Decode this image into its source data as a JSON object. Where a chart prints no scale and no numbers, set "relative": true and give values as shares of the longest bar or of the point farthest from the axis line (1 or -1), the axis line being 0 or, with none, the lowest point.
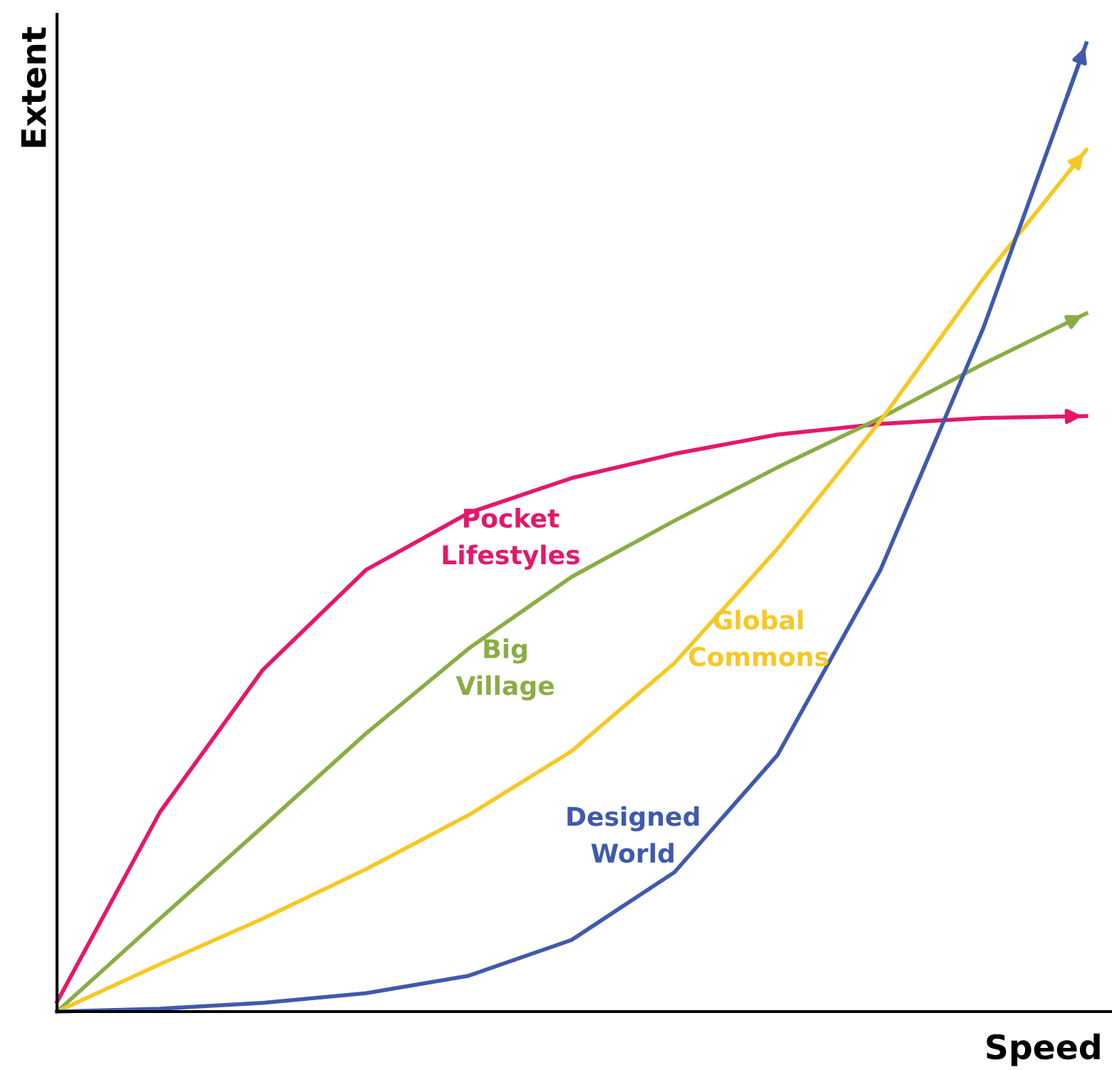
{
  "chart_data": {
    "type": "line",
    "relative": true,
    "xlabel": "Speed",
    "ylabel": "Extent",
    "line_style": "solid",
    "marker": "none",
    "legend": false,
    "categories": [
      null,
      null,
      null,
      null,
      null,
      null,
      null,
      null,
      null,
      null,
      null
    ],
    "series": [
      {
        "name": "Pocket\nLifestyles",
        "color": "#e5176b",
        "values": [
          0.01,
          0.206,
          0.353,
          0.456,
          0.515,
          0.551,
          0.576,
          0.596,
          0.607,
          0.613,
          0.615
        ]
      },
      {
        "name": "Big\nVillage",
        "color": "#8aad45",
        "values": [
          0,
          0.096,
          0.191,
          0.287,
          0.375,
          0.449,
          0.507,
          0.562,
          0.613,
          0.669,
          0.721
        ]
      },
      {
        "name": "Global\nCommons",
        "color": "#f7c824",
        "values": [
          0,
          0.049,
          0.096,
          0.147,
          0.203,
          0.269,
          0.36,
          0.478,
          0.61,
          0.757,
          0.89
        ]
      },
      {
        "name": "Designed\nWorld",
        "color": "#3f5aad",
        "values": [
          0,
          0.003,
          0.009,
          0.019,
          0.037,
          0.074,
          0.144,
          0.265,
          0.456,
          0.706,
          1.0
        ]
      }
    ]
  }
}
